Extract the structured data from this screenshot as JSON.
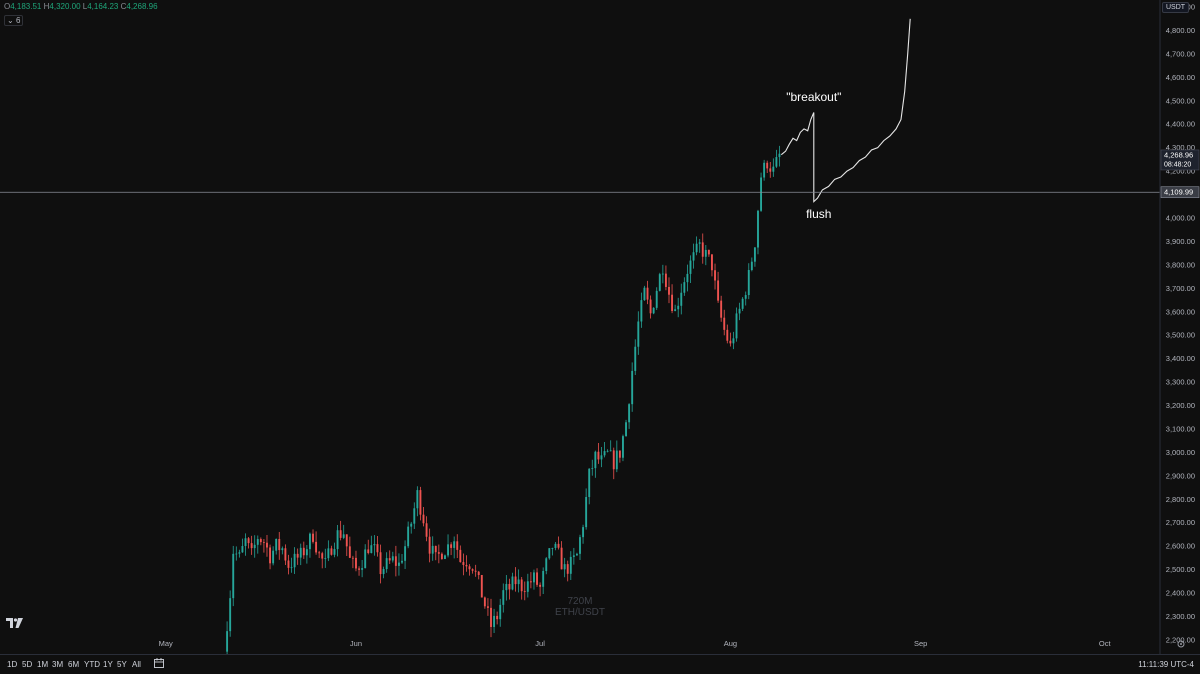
{
  "ohlc": {
    "o_label": "O",
    "o": "4,183.51",
    "h_label": "H",
    "h": "4,320.00",
    "l_label": "L",
    "l": "4,164.23",
    "c_label": "C",
    "c": "4,268.96"
  },
  "indicator_toggle": "6",
  "currency": "USDT",
  "watermark": {
    "interval": "720M",
    "symbol": "ETH/USDT"
  },
  "timeframes": [
    "1D",
    "5D",
    "1M",
    "3M",
    "6M",
    "YTD",
    "1Y",
    "5Y",
    "All"
  ],
  "clock": "11:11:39 UTC-4",
  "colors": {
    "up": "#26a69a",
    "down": "#ef5350",
    "background": "#0f0f0f",
    "text": "#d1d4dc"
  },
  "chart_data": {
    "type": "candlestick",
    "x_ticks": [
      {
        "label": "May",
        "day": 121
      },
      {
        "label": "Jun",
        "day": 152
      },
      {
        "label": "Jul",
        "day": 182
      },
      {
        "label": "Aug",
        "day": 213
      },
      {
        "label": "Sep",
        "day": 244
      },
      {
        "label": "Oct",
        "day": 274
      }
    ],
    "y_ticks": [
      2200,
      2300,
      2400,
      2500,
      2600,
      2700,
      2800,
      2900,
      3000,
      3100,
      3200,
      3300,
      3400,
      3500,
      3600,
      3700,
      3800,
      3900,
      4000,
      4100,
      4200,
      4300,
      4400,
      4500,
      4600,
      4700,
      4800,
      4900
    ],
    "y_tick_labels": [
      "2,200.00",
      "2,300.00",
      "2,400.00",
      "2,500.00",
      "2,600.00",
      "2,700.00",
      "2,800.00",
      "2,900.00",
      "3,000.00",
      "3,100.00",
      "3,200.00",
      "3,300.00",
      "3,400.00",
      "3,500.00",
      "3,600.00",
      "3,700.00",
      "3,800.00",
      "3,900.00",
      "4,000.00",
      "4,100.00",
      "4,200.00",
      "4,300.00",
      "4,400.00",
      "4,500.00",
      "4,600.00",
      "4,700.00",
      "4,800.00",
      "4,900.00"
    ],
    "ylim": [
      2140,
      4930
    ],
    "xlim": [
      94,
      283
    ],
    "candles_per_day": 2,
    "close_path": [
      [
        130.5,
        2150
      ],
      [
        131.5,
        2400
      ],
      [
        132,
        2580
      ],
      [
        133,
        2550
      ],
      [
        134,
        2620
      ],
      [
        135,
        2560
      ],
      [
        136,
        2640
      ],
      [
        137,
        2620
      ],
      [
        138,
        2560
      ],
      [
        139,
        2600
      ],
      [
        140,
        2590
      ],
      [
        141,
        2520
      ],
      [
        142,
        2540
      ],
      [
        143,
        2560
      ],
      [
        144,
        2600
      ],
      [
        145,
        2650
      ],
      [
        146,
        2560
      ],
      [
        147,
        2520
      ],
      [
        148,
        2600
      ],
      [
        149,
        2650
      ],
      [
        150,
        2660
      ],
      [
        151,
        2540
      ],
      [
        152,
        2500
      ],
      [
        153,
        2540
      ],
      [
        154,
        2600
      ],
      [
        155,
        2580
      ],
      [
        156,
        2500
      ],
      [
        157,
        2520
      ],
      [
        158,
        2540
      ],
      [
        159,
        2520
      ],
      [
        160,
        2600
      ],
      [
        161,
        2700
      ],
      [
        162,
        2820
      ],
      [
        163,
        2720
      ],
      [
        164,
        2600
      ],
      [
        165,
        2540
      ],
      [
        166,
        2580
      ],
      [
        167,
        2600
      ],
      [
        168,
        2640
      ],
      [
        169,
        2540
      ],
      [
        170,
        2540
      ],
      [
        171,
        2520
      ],
      [
        172,
        2440
      ],
      [
        173,
        2350
      ],
      [
        174,
        2260
      ],
      [
        175,
        2300
      ],
      [
        176,
        2400
      ],
      [
        177,
        2420
      ],
      [
        178,
        2450
      ],
      [
        179,
        2430
      ],
      [
        180,
        2440
      ],
      [
        181,
        2460
      ],
      [
        182,
        2420
      ],
      [
        183,
        2520
      ],
      [
        184,
        2600
      ],
      [
        185,
        2560
      ],
      [
        186,
        2500
      ],
      [
        187,
        2520
      ],
      [
        188,
        2560
      ],
      [
        189,
        2700
      ],
      [
        190,
        2900
      ],
      [
        191,
        2980
      ],
      [
        192,
        2960
      ],
      [
        193,
        2990
      ],
      [
        194,
        2960
      ],
      [
        195,
        3000
      ],
      [
        196,
        3130
      ],
      [
        197,
        3350
      ],
      [
        198,
        3550
      ],
      [
        199,
        3680
      ],
      [
        200,
        3590
      ],
      [
        201,
        3700
      ],
      [
        202,
        3800
      ],
      [
        203,
        3680
      ],
      [
        204,
        3600
      ],
      [
        205,
        3700
      ],
      [
        206,
        3780
      ],
      [
        207,
        3830
      ],
      [
        208,
        3880
      ],
      [
        209,
        3840
      ],
      [
        210,
        3800
      ],
      [
        211,
        3620
      ],
      [
        212,
        3520
      ],
      [
        213,
        3450
      ],
      [
        214,
        3560
      ],
      [
        215,
        3650
      ],
      [
        216,
        3750
      ],
      [
        217,
        3900
      ],
      [
        218,
        4180
      ],
      [
        219,
        4240
      ],
      [
        220,
        4200
      ],
      [
        221,
        4265
      ]
    ],
    "projection": [
      [
        221.3,
        4270
      ],
      [
        222,
        4285
      ],
      [
        222.6,
        4315
      ],
      [
        223.2,
        4340
      ],
      [
        223.8,
        4330
      ],
      [
        224.4,
        4365
      ],
      [
        225,
        4380
      ],
      [
        225.6,
        4372
      ],
      [
        226.1,
        4420
      ],
      [
        226.6,
        4450
      ],
      [
        226.6,
        4070
      ],
      [
        227.2,
        4085
      ],
      [
        228,
        4120
      ],
      [
        229,
        4135
      ],
      [
        230,
        4165
      ],
      [
        231,
        4175
      ],
      [
        232,
        4200
      ],
      [
        233,
        4215
      ],
      [
        234,
        4245
      ],
      [
        235,
        4260
      ],
      [
        236,
        4290
      ],
      [
        237,
        4300
      ],
      [
        238,
        4330
      ],
      [
        239,
        4350
      ],
      [
        240,
        4380
      ],
      [
        240.8,
        4420
      ],
      [
        241.4,
        4540
      ],
      [
        241.9,
        4700
      ],
      [
        242.3,
        4850
      ]
    ],
    "horizontal_line": 4109.99,
    "horizontal_line_label": "4,109.99",
    "last_price": 4268.96,
    "last_price_label": "4,268.96",
    "countdown": "08:48:20",
    "annotations": [
      {
        "text": "\"breakout\"",
        "day": 226.6,
        "price": 4500
      },
      {
        "text": "flush",
        "day": 227.4,
        "price": 4000
      }
    ]
  }
}
